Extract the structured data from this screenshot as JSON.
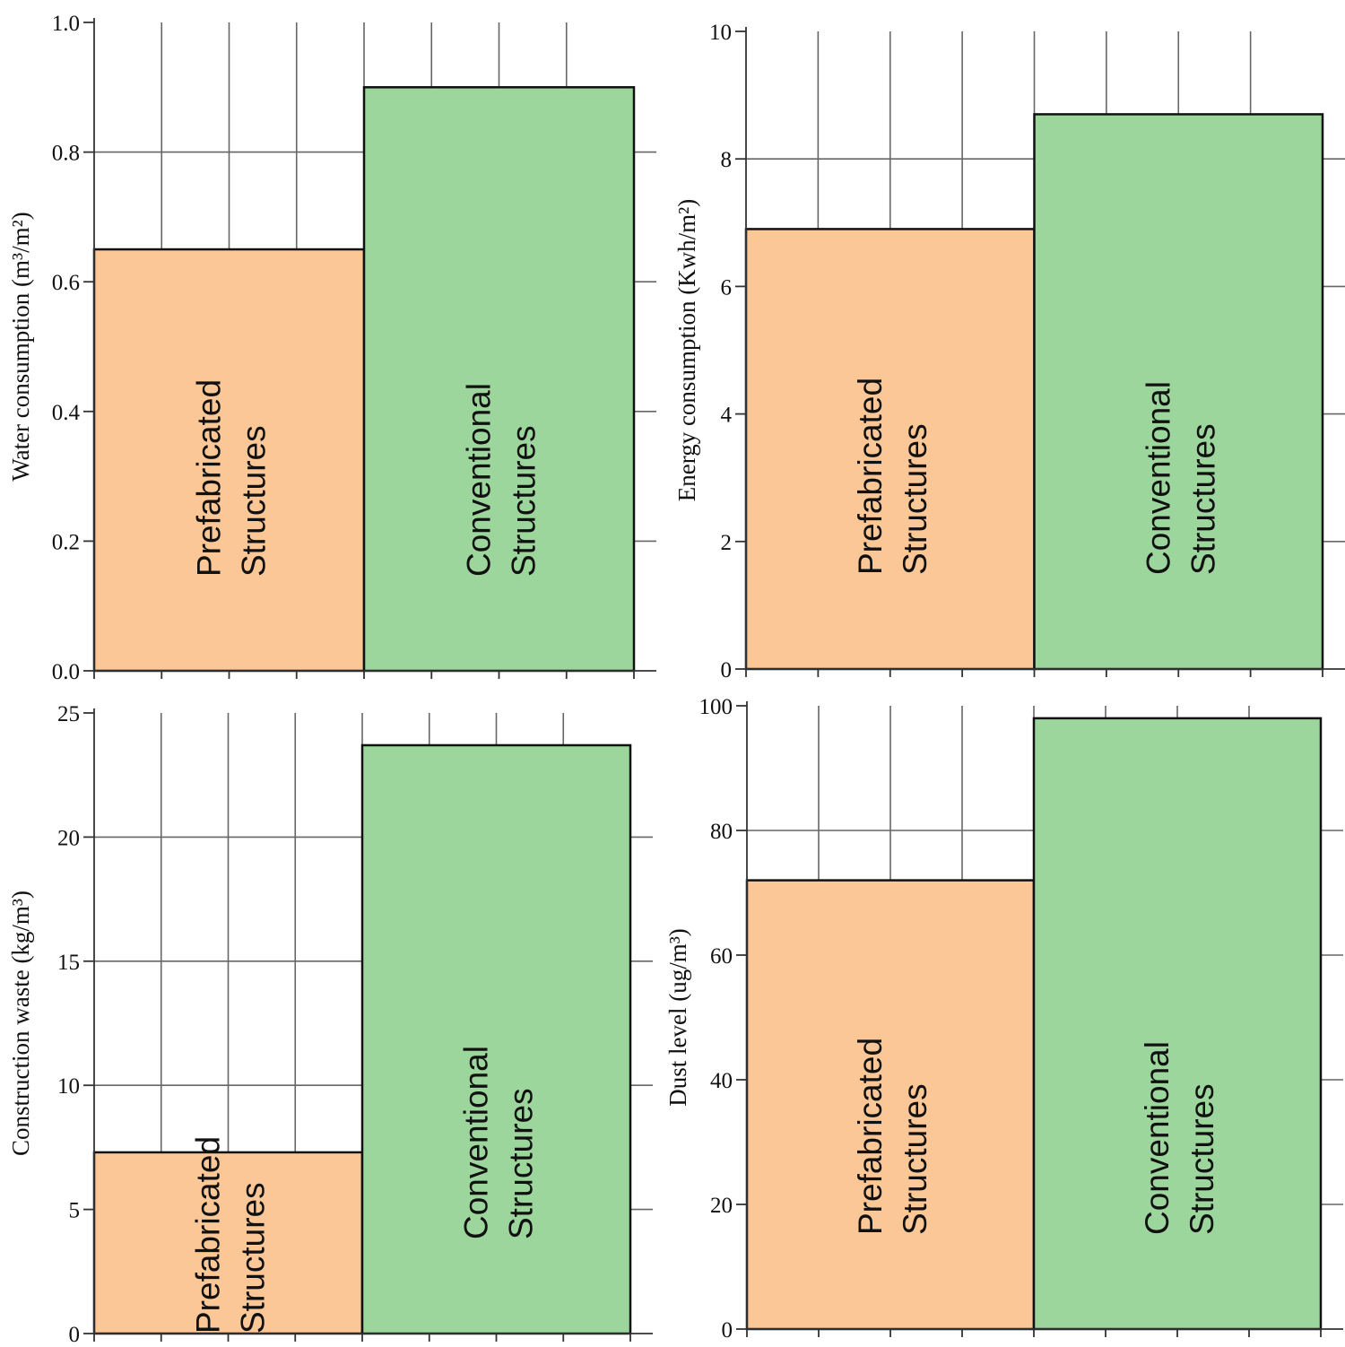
{
  "colors": {
    "prefabricated": "#FBC797",
    "conventional": "#9DD69D"
  },
  "chart_data": [
    {
      "type": "bar",
      "categories": [
        "Prefabricated Structures",
        "Conventional Structures"
      ],
      "category_label_lines": [
        [
          "Prefabricated",
          "Structures"
        ],
        [
          "Conventional",
          "Structures"
        ]
      ],
      "values": [
        0.65,
        0.9
      ],
      "ylabel": "Water consumption (m³/m²)",
      "ylim": [
        0,
        1.0
      ],
      "yticks": [
        0.0,
        0.2,
        0.4,
        0.6,
        0.8,
        1.0
      ],
      "ytick_labels": [
        "0.0",
        "0.2",
        "0.4",
        "0.6",
        "0.8",
        "1.0"
      ],
      "grid": true
    },
    {
      "type": "bar",
      "categories": [
        "Prefabricated Structures",
        "Conventional Structures"
      ],
      "category_label_lines": [
        [
          "Prefabricated",
          "Structures"
        ],
        [
          "Conventional",
          "Structures"
        ]
      ],
      "values": [
        6.9,
        8.7
      ],
      "ylabel": "Energy consumption (Kwh/m²)",
      "ylim": [
        0,
        10
      ],
      "yticks": [
        0,
        2,
        4,
        6,
        8,
        10
      ],
      "ytick_labels": [
        "0",
        "2",
        "4",
        "6",
        "8",
        "10"
      ],
      "grid": true
    },
    {
      "type": "bar",
      "categories": [
        "Prefabricated Structures",
        "Conventional Structures"
      ],
      "category_label_lines": [
        [
          "Prefabricated",
          "Structures"
        ],
        [
          "Conventional",
          "Structures"
        ]
      ],
      "values": [
        7.3,
        23.7
      ],
      "ylabel": "Construction waste (kg/m³)",
      "ylim": [
        0,
        25
      ],
      "yticks": [
        0,
        5,
        10,
        15,
        20,
        25
      ],
      "ytick_labels": [
        "0",
        "5",
        "10",
        "15",
        "20",
        "25"
      ],
      "grid": true
    },
    {
      "type": "bar",
      "categories": [
        "Prefabricated Structures",
        "Conventional Structures"
      ],
      "category_label_lines": [
        [
          "Prefabricated",
          "Structures"
        ],
        [
          "Conventional",
          "Structures"
        ]
      ],
      "values": [
        72,
        98
      ],
      "ylabel": "Dust level (ug/m³)",
      "ylim": [
        0,
        100
      ],
      "yticks": [
        0,
        20,
        40,
        60,
        80,
        100
      ],
      "ytick_labels": [
        "0",
        "20",
        "40",
        "60",
        "80",
        "100"
      ],
      "grid": true
    }
  ]
}
